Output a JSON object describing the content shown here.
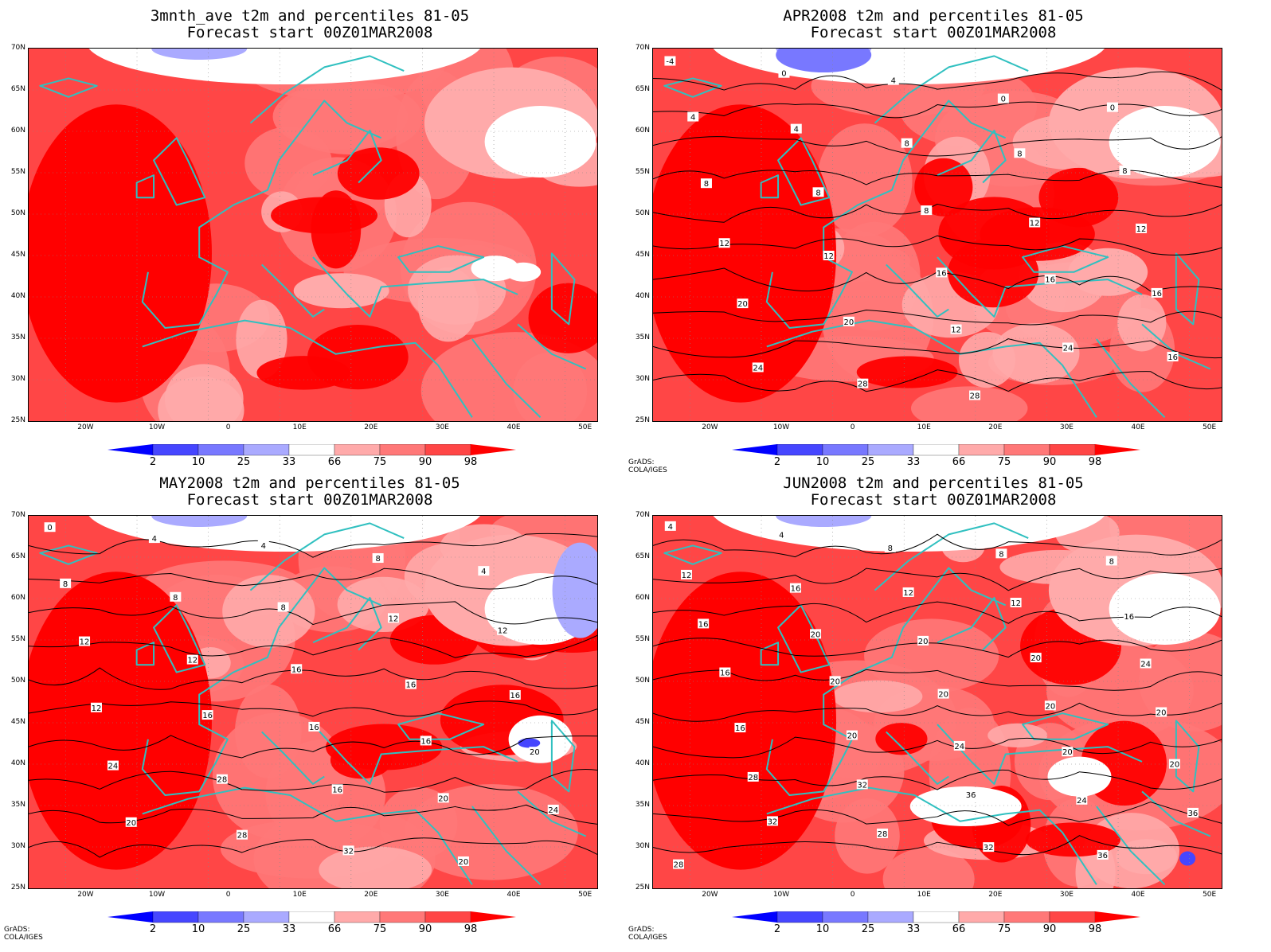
{
  "panels": [
    {
      "id": "p1",
      "title_line1": "3mnth_ave t2m and percentiles 81-05",
      "title_line2": "Forecast start 00Z01MAR2008",
      "contour_labels": [],
      "credit": ""
    },
    {
      "id": "p2",
      "title_line1": "APR2008 t2m and percentiles 81-05",
      "title_line2": "Forecast start 00Z01MAR2008",
      "contour_labels": [
        "-4",
        "0",
        "4",
        "0",
        "0",
        "4",
        "4",
        "8",
        "8",
        "8",
        "8",
        "8",
        "8",
        "12",
        "12",
        "12",
        "12",
        "16",
        "16",
        "16",
        "20",
        "20",
        "12",
        "24",
        "16",
        "24",
        "28",
        "28"
      ],
      "credit": "GrADS: COLA/IGES"
    },
    {
      "id": "p3",
      "title_line1": "MAY2008 t2m and percentiles 81-05",
      "title_line2": "Forecast start 00Z01MAR2008",
      "contour_labels": [
        "0",
        "4",
        "4",
        "8",
        "4",
        "8",
        "8",
        "8",
        "12",
        "12",
        "12",
        "12",
        "16",
        "16",
        "16",
        "12",
        "16",
        "16",
        "16",
        "20",
        "24",
        "28",
        "16",
        "20",
        "24",
        "20",
        "28",
        "32",
        "20"
      ],
      "credit": "GrADS: COLA/IGES"
    },
    {
      "id": "p4",
      "title_line1": "JUN2008 t2m and percentiles 81-05",
      "title_line2": "Forecast start 00Z01MAR2008",
      "contour_labels": [
        "4",
        "4",
        "8",
        "8",
        "8",
        "12",
        "16",
        "12",
        "12",
        "16",
        "16",
        "20",
        "20",
        "20",
        "24",
        "16",
        "20",
        "20",
        "20",
        "20",
        "16",
        "20",
        "24",
        "20",
        "20",
        "28",
        "32",
        "36",
        "24",
        "36",
        "32",
        "28",
        "32",
        "36",
        "28"
      ],
      "credit": "GrADS: COLA/IGES"
    }
  ],
  "lat_labels": [
    "70N",
    "65N",
    "60N",
    "55N",
    "50N",
    "45N",
    "40N",
    "35N",
    "30N",
    "25N"
  ],
  "lon_labels": [
    "20W",
    "10W",
    "0",
    "10E",
    "20E",
    "30E",
    "40E",
    "50E"
  ],
  "colorbar_ticks": [
    "2",
    "10",
    "25",
    "33",
    "66",
    "75",
    "90",
    "98"
  ],
  "colorbar_colors": [
    "#0000ff",
    "#4646ff",
    "#7878ff",
    "#aaaaff",
    "#ffffff",
    "#ffaaaa",
    "#ff7878",
    "#ff4646",
    "#ff0000"
  ],
  "colors": {
    "coast": "#30c0c0",
    "contour": "#000000",
    "grid": "#888888"
  }
}
